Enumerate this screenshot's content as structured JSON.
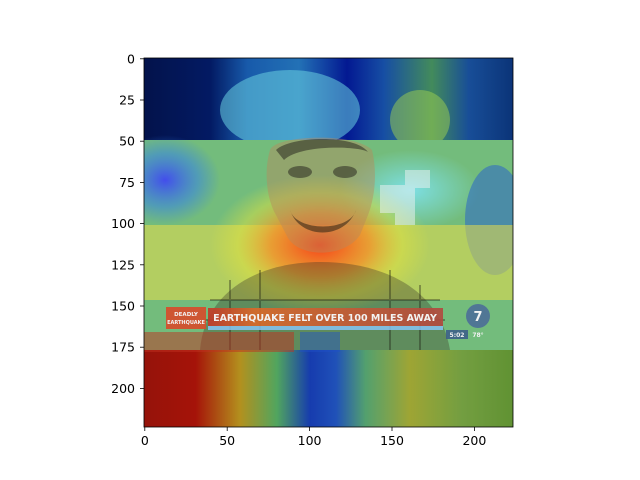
{
  "image": {
    "banner_tag_line1": "DEADLY",
    "banner_tag_line2": "EARTHQUAKE",
    "banner_headline": "EARTHQUAKE FELT OVER 100 MILES AWAY",
    "banner_channel": "7",
    "banner_time": "5:02",
    "banner_temp": "78°",
    "subject": "man-face",
    "overlay": "jet-colormap-heatmap"
  },
  "axes": {
    "x_ticks": [
      "0",
      "50",
      "100",
      "150",
      "200"
    ],
    "y_ticks": [
      "0",
      "25",
      "50",
      "75",
      "100",
      "125",
      "150",
      "175",
      "200"
    ]
  }
}
